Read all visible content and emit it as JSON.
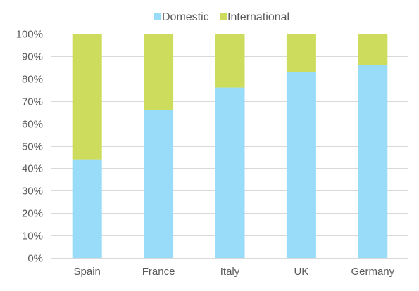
{
  "chart_data": {
    "type": "bar",
    "stacked": true,
    "categories": [
      "Spain",
      "France",
      "Italy",
      "UK",
      "Germany"
    ],
    "series": [
      {
        "name": "Domestic",
        "color": "#99dcf9",
        "values": [
          44,
          66,
          76,
          83,
          86
        ]
      },
      {
        "name": "International",
        "color": "#cddc5c",
        "values": [
          56,
          34,
          24,
          17,
          14
        ]
      }
    ],
    "title": "",
    "xlabel": "",
    "ylabel": "",
    "ylim": [
      0,
      100
    ],
    "yticks": [
      "0%",
      "10%",
      "20%",
      "30%",
      "40%",
      "50%",
      "60%",
      "70%",
      "80%",
      "90%",
      "100%"
    ],
    "grid": true,
    "legend_position": "top"
  }
}
